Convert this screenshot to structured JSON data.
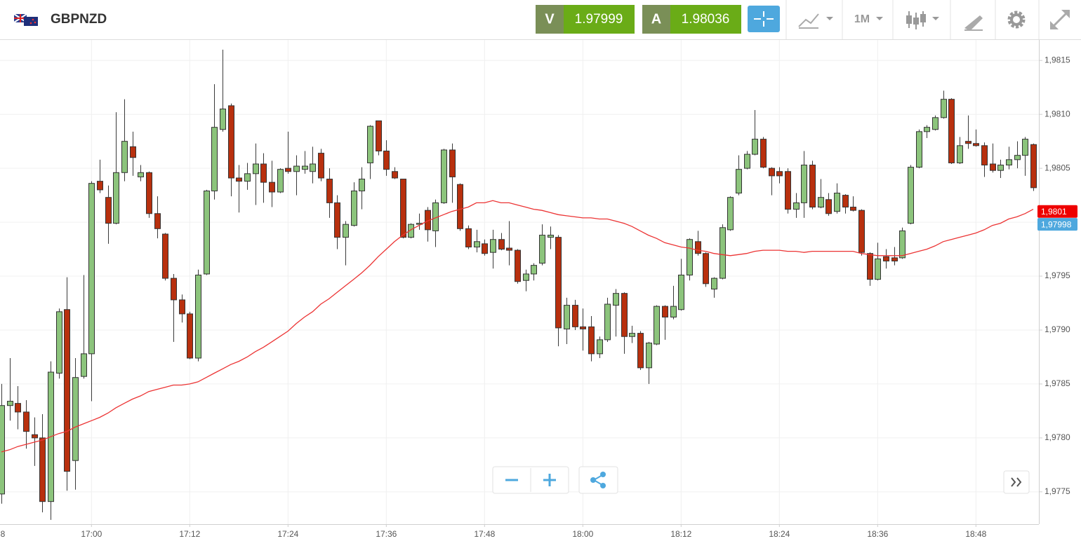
{
  "toolbar": {
    "symbol": "GBPNZD",
    "sell_label": "V",
    "sell_price": "1.97999",
    "buy_label": "A",
    "buy_price": "1.98036",
    "timeframe": "1M"
  },
  "chart_data": {
    "type": "candlestick",
    "categories": [
      "8",
      null,
      null,
      null,
      null,
      null,
      null,
      null,
      null,
      null,
      null,
      null,
      "17:00",
      null,
      null,
      null,
      null,
      null,
      null,
      null,
      null,
      null,
      null,
      null,
      "17:12",
      null,
      null,
      null,
      null,
      null,
      null,
      null,
      null,
      null,
      null,
      null,
      "17:24",
      null,
      null,
      null,
      null,
      null,
      null,
      null,
      null,
      null,
      null,
      null,
      "17:36",
      null,
      null,
      null,
      null,
      null,
      null,
      null,
      null,
      null,
      null,
      null,
      "17:48",
      null,
      null,
      null,
      null,
      null,
      null,
      null,
      null,
      null,
      null,
      null,
      "18:00",
      null,
      null,
      null,
      null,
      null,
      null,
      null,
      null,
      null,
      null,
      null,
      "18:12",
      null,
      null,
      null,
      null,
      null,
      null,
      null,
      null,
      null,
      null,
      null,
      "18:24",
      null,
      null,
      null,
      null,
      null,
      null,
      null,
      null,
      null,
      null,
      null,
      "18:36",
      null,
      null,
      null,
      null,
      null,
      null,
      null,
      null,
      null,
      null,
      null,
      "18:48",
      null,
      null,
      null,
      null,
      null,
      null,
      null
    ],
    "open": [
      null,
      1.97748,
      1.9783,
      1.97832,
      1.97824,
      1.97803,
      1.978,
      1.97741,
      1.9786,
      1.97919,
      1.97779,
      1.97857,
      1.97878,
      1.98038,
      1.98023,
      1.97999,
      1.98046,
      1.9807,
      1.98042,
      1.98046,
      1.98008,
      1.97989,
      1.97948,
      1.97928,
      1.97915,
      1.97874,
      1.97952,
      1.98029,
      1.98086,
      1.98108,
      1.98041,
      1.98038,
      1.98045,
      1.98054,
      1.98037,
      1.98028,
      1.9805,
      1.98047,
      1.98049,
      1.98047,
      1.98064,
      1.9804,
      1.98018,
      1.97986,
      1.97997,
      1.98029,
      1.98055,
      1.98094,
      1.98066,
      1.98047,
      1.9804,
      1.97986,
      1.97998,
      1.98011,
      1.97992,
      1.98018,
      1.98067,
      1.98035,
      1.97994,
      1.97977,
      1.9798,
      1.97972,
      1.97984,
      1.97976,
      1.97974,
      1.97946,
      1.97952,
      1.97962,
      1.97986,
      1.97986,
      1.97901,
      1.97923,
      1.97903,
      1.97903,
      1.97878,
      1.97891,
      1.97923,
      1.97934,
      1.97894,
      1.97897,
      1.97865,
      1.97887,
      1.97922,
      1.97912,
      1.97919,
      1.97951,
      1.97982,
      1.97971,
      1.97938,
      1.97948,
      1.97993,
      1.98027,
      1.9805,
      1.98063,
      1.98077,
      1.9805,
      1.98047,
      1.98047,
      1.98012,
      1.98018,
      1.98053,
      1.98014,
      1.98021,
      1.9801,
      1.98025,
      1.98014,
      1.98011,
      1.97971,
      1.97947,
      1.97968,
      1.97967,
      1.97967,
      1.97999,
      1.98051,
      1.98084,
      1.98086,
      1.98097,
      1.98114,
      1.98055,
      1.98075,
      1.98073,
      1.98071,
      1.98054,
      1.98048,
      1.98053,
      1.98058,
      1.98062,
      1.98072
    ],
    "high": [
      null,
      1.9785,
      1.97874,
      1.97848,
      1.97835,
      1.97819,
      1.97822,
      1.97871,
      1.9792,
      1.97949,
      1.97874,
      1.97951,
      1.98038,
      1.98058,
      1.98034,
      1.98102,
      1.98114,
      1.98084,
      1.98053,
      1.98047,
      1.98024,
      1.9799,
      1.97952,
      1.97933,
      1.97917,
      1.97956,
      1.9803,
      1.98128,
      1.9816,
      1.9811,
      1.98053,
      1.98055,
      1.98073,
      1.98064,
      1.98057,
      1.9805,
      1.98084,
      1.98062,
      1.98066,
      1.9807,
      1.98068,
      1.9805,
      1.98025,
      1.98001,
      1.98037,
      1.98051,
      1.9809,
      1.98094,
      1.98076,
      1.98051,
      1.9804,
      1.97999,
      1.98008,
      1.98014,
      1.98021,
      1.98068,
      1.98073,
      1.98036,
      1.97997,
      1.97993,
      1.97984,
      1.97993,
      1.9799,
      1.98001,
      1.97975,
      1.97956,
      1.97962,
      1.97998,
      1.97996,
      1.97988,
      1.9793,
      1.97928,
      1.9792,
      1.97913,
      1.97894,
      1.9793,
      1.97938,
      1.97935,
      1.97904,
      1.97899,
      1.97889,
      1.97923,
      1.97923,
      1.97941,
      1.97966,
      1.97985,
      1.97992,
      1.97972,
      1.97949,
      1.97998,
      1.98024,
      1.98062,
      1.98066,
      1.98104,
      1.98079,
      1.98051,
      1.98051,
      1.9805,
      1.98027,
      1.98066,
      1.98057,
      1.9804,
      1.98027,
      1.98036,
      1.98026,
      1.98024,
      1.98012,
      1.97972,
      1.97981,
      1.97975,
      1.97977,
      1.97995,
      1.98053,
      1.98086,
      1.9809,
      1.98099,
      1.98122,
      1.98115,
      1.98079,
      1.98099,
      1.98086,
      1.98074,
      1.98073,
      1.98058,
      1.9807,
      1.98075,
      1.98079,
      1.98073
    ],
    "low": [
      null,
      1.97739,
      1.97816,
      1.97808,
      1.9779,
      1.97774,
      1.97731,
      1.97724,
      1.97855,
      1.97751,
      1.97752,
      1.97855,
      1.97834,
      1.98027,
      1.9798,
      1.97998,
      1.98038,
      1.98043,
      1.98038,
      1.98004,
      1.97985,
      1.97946,
      1.97889,
      1.97907,
      1.97873,
      1.97871,
      1.97951,
      1.98021,
      1.98084,
      1.98024,
      1.98009,
      1.9803,
      1.98016,
      1.98018,
      1.98014,
      1.98027,
      1.98045,
      1.98025,
      1.98045,
      1.98036,
      1.98038,
      1.98004,
      1.97975,
      1.9796,
      1.97996,
      1.98012,
      1.9804,
      1.98062,
      1.98043,
      1.9804,
      1.97985,
      1.97985,
      1.97993,
      1.97982,
      1.97977,
      1.98017,
      1.98018,
      1.97992,
      1.97975,
      1.97972,
      1.97969,
      1.97957,
      1.97974,
      1.9796,
      1.97943,
      1.97936,
      1.97946,
      1.9796,
      1.97975,
      1.97885,
      1.97887,
      1.979,
      1.97881,
      1.97871,
      1.97874,
      1.97889,
      1.97894,
      1.97878,
      1.97888,
      1.97863,
      1.9785,
      1.97886,
      1.97891,
      1.9791,
      1.97918,
      1.97946,
      1.97969,
      1.9794,
      1.9793,
      1.97947,
      1.97992,
      1.98025,
      1.98049,
      1.98062,
      1.9805,
      1.98025,
      1.98036,
      1.98008,
      1.98004,
      1.98004,
      1.98012,
      1.98013,
      1.98006,
      1.98008,
      1.98008,
      1.9801,
      1.97969,
      1.97941,
      1.97946,
      1.97957,
      1.9796,
      1.97966,
      1.97998,
      1.9805,
      1.98078,
      1.98085,
      1.98096,
      1.98054,
      1.98054,
      1.98068,
      1.9807,
      1.98042,
      1.98046,
      1.98041,
      1.98049,
      1.9805,
      1.98043,
      1.98029
    ],
    "close": [
      null,
      1.9783,
      1.97834,
      1.97824,
      1.97806,
      1.978,
      1.97741,
      1.97861,
      1.97917,
      1.97769,
      1.97856,
      1.97878,
      1.98036,
      1.9803,
      1.97999,
      1.98046,
      1.98075,
      1.9806,
      1.98046,
      1.98008,
      1.97994,
      1.97948,
      1.97928,
      1.97915,
      1.97874,
      1.97951,
      1.98029,
      1.98088,
      1.98105,
      1.98041,
      1.98038,
      1.98045,
      1.98054,
      1.98037,
      1.98028,
      1.98049,
      1.98047,
      1.98052,
      1.98052,
      1.98054,
      1.98041,
      1.98018,
      1.97986,
      1.97998,
      1.98029,
      1.9804,
      1.98089,
      1.98066,
      1.98049,
      1.98041,
      1.97986,
      1.97998,
      1.97999,
      1.97993,
      1.98018,
      1.98067,
      1.98042,
      1.97994,
      1.97977,
      1.97982,
      1.97971,
      1.97984,
      1.97975,
      1.97974,
      1.97945,
      1.97952,
      1.9796,
      1.97988,
      1.97988,
      1.97902,
      1.97923,
      1.97903,
      1.97901,
      1.97878,
      1.97891,
      1.97924,
      1.97934,
      1.97894,
      1.97897,
      1.97865,
      1.97888,
      1.97922,
      1.97912,
      1.97922,
      1.97951,
      1.97984,
      1.97971,
      1.97943,
      1.97948,
      1.97995,
      1.98023,
      1.98049,
      1.98063,
      1.98077,
      1.98051,
      1.98043,
      1.98043,
      1.98012,
      1.98018,
      1.98053,
      1.98014,
      1.98023,
      1.98008,
      1.98027,
      1.98014,
      1.98011,
      1.97972,
      1.97947,
      1.97966,
      1.97964,
      1.97964,
      1.97992,
      1.98051,
      1.98084,
      1.98088,
      1.98097,
      1.98114,
      1.98055,
      1.98071,
      1.98073,
      1.98071,
      1.98053,
      1.98048,
      1.98053,
      1.98058,
      1.98062,
      1.98077,
      1.98032
    ],
    "up_color": "#8cc47c",
    "down_color": "#b8300e",
    "overlay": {
      "type": "line",
      "color": "#ec3434",
      "values": [
        null,
        1.97787,
        1.97789,
        1.97792,
        1.97794,
        1.97796,
        1.97798,
        1.97801,
        1.97804,
        1.97806,
        1.9781,
        1.97813,
        1.97816,
        1.97819,
        1.97823,
        1.97828,
        1.97832,
        1.97836,
        1.97839,
        1.97843,
        1.97845,
        1.97847,
        1.97849,
        1.97849,
        1.9785,
        1.97852,
        1.97856,
        1.9786,
        1.97864,
        1.97868,
        1.97871,
        1.97875,
        1.9788,
        1.97884,
        1.97889,
        1.97894,
        1.97899,
        1.97906,
        1.97912,
        1.97917,
        1.97924,
        1.97929,
        1.97935,
        1.97941,
        1.97947,
        1.97953,
        1.9796,
        1.97968,
        1.97975,
        1.97982,
        1.97988,
        1.97993,
        1.97997,
        1.98001,
        1.98004,
        1.98007,
        1.9801,
        1.98012,
        1.98014,
        1.98018,
        1.98018,
        1.9802,
        1.98018,
        1.98018,
        1.98016,
        1.98014,
        1.98012,
        1.98011,
        1.98009,
        1.98007,
        1.98006,
        1.98005,
        1.98004,
        1.98004,
        1.98003,
        1.98003,
        1.98001,
        1.97999,
        1.97996,
        1.97992,
        1.97988,
        1.97985,
        1.97981,
        1.97979,
        1.97977,
        1.97976,
        1.97974,
        1.97973,
        1.97971,
        1.9797,
        1.97969,
        1.9797,
        1.97971,
        1.97973,
        1.97974,
        1.97974,
        1.97974,
        1.97973,
        1.97973,
        1.97972,
        1.97973,
        1.97973,
        1.97973,
        1.97973,
        1.97973,
        1.97973,
        1.97971,
        1.9797,
        1.97969,
        1.97969,
        1.97969,
        1.97969,
        1.97971,
        1.97973,
        1.97975,
        1.97978,
        1.97982,
        1.97984,
        1.97986,
        1.97988,
        1.9799,
        1.97993,
        1.97997,
        1.97999,
        1.98003,
        1.98005,
        1.98008,
        1.98012
      ]
    },
    "markers": [
      {
        "value": 1.9801,
        "label": "1,9801",
        "color": "#ee0000"
      },
      {
        "value": 1.97998,
        "label": "1,97998",
        "color": "#4ea8de"
      }
    ],
    "ylim": [
      1.9772,
      1.98169
    ],
    "yticks": [
      {
        "value": 1.9775,
        "label": "1,9775"
      },
      {
        "value": 1.978,
        "label": "1,9780"
      },
      {
        "value": 1.9785,
        "label": "1,9785"
      },
      {
        "value": 1.979,
        "label": "1,9790"
      },
      {
        "value": 1.9795,
        "label": "1,9795"
      },
      {
        "value": 1.98,
        "label": "1,9800"
      },
      {
        "value": 1.9805,
        "label": "1,9805"
      },
      {
        "value": 1.981,
        "label": "1,9810"
      },
      {
        "value": 1.9815,
        "label": "1,9815"
      }
    ],
    "grid": true
  }
}
